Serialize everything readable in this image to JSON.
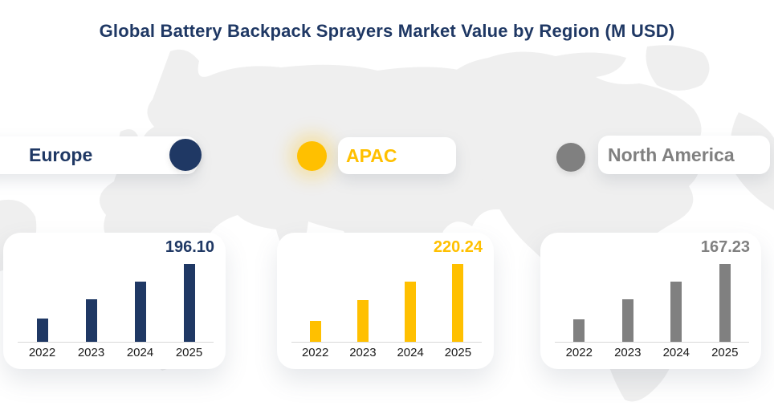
{
  "title": "Global Battery Backpack Sprayers Market Value by Region (M USD)",
  "colors": {
    "title": "#1F3864",
    "europe": "#1F3864",
    "apac": "#FFC000",
    "north_america": "#808080",
    "tick_label": "#1A1A1A",
    "axis_line": "#D9D9D9",
    "map_land": "#EFEFEF",
    "card_background": "#FFFFFF",
    "background": "#FFFFFF"
  },
  "legend": [
    {
      "label": "Europe",
      "color": "#1F3864"
    },
    {
      "label": "APAC",
      "color": "#FFC000"
    },
    {
      "label": "North America",
      "color": "#808080"
    }
  ],
  "chart_data": [
    {
      "type": "bar",
      "region": "Europe",
      "color": "#1F3864",
      "categories": [
        "2022",
        "2023",
        "2024",
        "2025"
      ],
      "values": [
        58,
        107,
        152,
        196.1
      ],
      "value_label": "196.10",
      "labeled_point": {
        "category": "2025",
        "value": 196.1
      },
      "values_note": "Only the 2025 bar is labeled on the chart; 2022-2024 values estimated from bar heights",
      "y_axis_visible": false,
      "grid": false
    },
    {
      "type": "bar",
      "region": "APAC",
      "color": "#FFC000",
      "categories": [
        "2022",
        "2023",
        "2024",
        "2025"
      ],
      "values": [
        59,
        119,
        170,
        220.24
      ],
      "value_label": "220.24",
      "labeled_point": {
        "category": "2025",
        "value": 220.24
      },
      "values_note": "Only the 2025 bar is labeled on the chart; 2022-2024 values estimated from bar heights",
      "y_axis_visible": false,
      "grid": false
    },
    {
      "type": "bar",
      "region": "North America",
      "color": "#808080",
      "categories": [
        "2022",
        "2023",
        "2024",
        "2025"
      ],
      "values": [
        48,
        92,
        130,
        167.23
      ],
      "value_label": "167.23",
      "labeled_point": {
        "category": "2025",
        "value": 167.23
      },
      "values_note": "Only the 2025 bar is labeled on the chart; 2022-2024 values estimated from bar heights",
      "y_axis_visible": false,
      "grid": false
    }
  ]
}
